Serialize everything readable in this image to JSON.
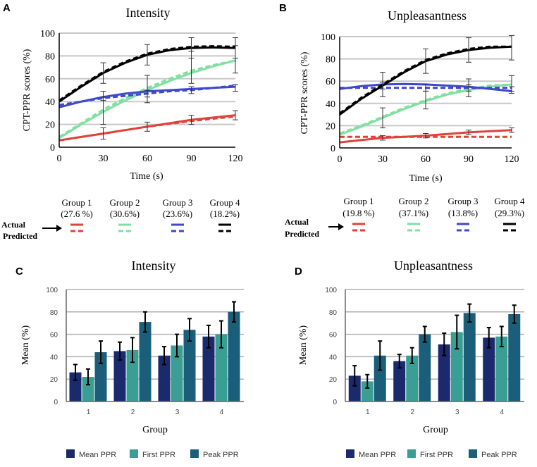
{
  "panels": {
    "a": "A",
    "b": "B",
    "c": "C",
    "d": "D"
  },
  "legend_top": {
    "actual_label": "Actual",
    "predicted_label": "Predicted",
    "left": [
      {
        "name": "Group 1",
        "pct": "(27.6 %)"
      },
      {
        "name": "Group 2",
        "pct": "(30.6%)"
      },
      {
        "name": "Group 3",
        "pct": "(23.6%)"
      },
      {
        "name": "Group 4",
        "pct": "(18.2%)"
      }
    ],
    "right": [
      {
        "name": "Group 1",
        "pct": "(19.8 %)"
      },
      {
        "name": "Group 2",
        "pct": "(37.1%)"
      },
      {
        "name": "Group 3",
        "pct": "(13.8%)"
      },
      {
        "name": "Group 4",
        "pct": "(29.3%)"
      }
    ]
  },
  "legend_bottom": [
    "Mean PPR",
    "First PPR",
    "Peak PPR"
  ],
  "colors": {
    "group1": "#e0413a",
    "group2": "#7fe0a0",
    "group3": "#3f48cc",
    "group4": "#000000",
    "mean": "#1a2a6c",
    "first": "#3a9e94",
    "peak": "#1a5e7a",
    "grid": "#c8c8c8"
  },
  "chart_data": [
    {
      "id": "A",
      "type": "line",
      "title": "Intensity",
      "xlabel": "Time (s)",
      "ylabel": "CPT-PPR scores (%)",
      "xlim": [
        0,
        120
      ],
      "ylim": [
        0,
        100
      ],
      "xticks": [
        0,
        30,
        60,
        90,
        120
      ],
      "yticks": [
        0,
        20,
        40,
        60,
        80,
        100
      ],
      "x": [
        0,
        15,
        30,
        45,
        60,
        75,
        90,
        105,
        120
      ],
      "series": [
        {
          "name": "Group 1",
          "color_key": "group1",
          "actual": [
            6,
            9,
            12,
            15,
            18,
            21,
            24,
            26,
            28
          ],
          "predicted": [
            6,
            9,
            12,
            15,
            18,
            20.5,
            23,
            25,
            27
          ],
          "err_x": [
            30,
            60,
            90,
            120
          ],
          "err_mean": [
            12,
            18,
            24,
            28
          ],
          "err_sd": [
            5,
            4,
            4,
            4
          ]
        },
        {
          "name": "Group 2",
          "color_key": "group2",
          "actual": [
            8,
            20,
            31,
            41,
            50,
            58,
            65,
            71,
            76
          ],
          "predicted": [
            9,
            21,
            33,
            43,
            52,
            60,
            67,
            72,
            76
          ],
          "err_x": [
            30,
            60,
            90,
            120
          ],
          "err_mean": [
            32,
            51,
            70,
            77
          ],
          "err_sd": [
            12,
            12,
            14,
            12
          ]
        },
        {
          "name": "Group 3",
          "color_key": "group3",
          "actual": [
            35,
            40,
            44,
            47,
            49,
            50,
            51,
            52,
            53
          ],
          "predicted": [
            37,
            40,
            43,
            45,
            47,
            49,
            50,
            52,
            54
          ],
          "err_x": [
            30,
            60,
            90,
            120
          ],
          "err_mean": [
            45,
            47,
            50,
            52
          ],
          "err_sd": [
            4,
            3,
            3,
            3
          ]
        },
        {
          "name": "Group 4",
          "color_key": "group4",
          "actual": [
            40,
            53,
            65,
            74,
            81,
            85,
            87,
            87.5,
            87
          ],
          "predicted": [
            41,
            54,
            66,
            75,
            82,
            86,
            88,
            88.5,
            88
          ],
          "err_x": [
            30,
            60,
            90,
            120
          ],
          "err_mean": [
            65,
            81,
            87,
            87
          ],
          "err_sd": [
            9,
            9,
            9,
            9
          ]
        }
      ]
    },
    {
      "id": "B",
      "type": "line",
      "title": "Unpleasantness",
      "xlabel": "Time (s)",
      "ylabel": "CPT-PPR scores (%)",
      "xlim": [
        0,
        120
      ],
      "ylim": [
        0,
        100
      ],
      "xticks": [
        0,
        30,
        60,
        90,
        120
      ],
      "yticks": [
        0,
        20,
        40,
        60,
        80,
        100
      ],
      "x": [
        0,
        15,
        30,
        45,
        60,
        75,
        90,
        105,
        120
      ],
      "series": [
        {
          "name": "Group 1",
          "color_key": "group1",
          "actual": [
            5,
            7,
            9,
            10,
            11,
            12.5,
            14,
            15,
            16
          ],
          "predicted": [
            10,
            10,
            10,
            10,
            10,
            10,
            10,
            10,
            10
          ],
          "err_x": [
            30,
            60,
            90,
            120
          ],
          "err_mean": [
            9,
            11,
            14,
            16
          ],
          "err_sd": [
            2,
            2,
            2,
            2
          ]
        },
        {
          "name": "Group 2",
          "color_key": "group2",
          "actual": [
            12,
            19,
            27,
            35,
            42,
            48,
            52,
            55,
            57
          ],
          "predicted": [
            13,
            20,
            28,
            36,
            43,
            49,
            53,
            56,
            57
          ],
          "err_x": [
            30,
            60,
            90,
            120
          ],
          "err_mean": [
            27,
            43,
            54,
            58
          ],
          "err_sd": [
            9,
            8,
            8,
            7
          ]
        },
        {
          "name": "Group 3",
          "color_key": "group3",
          "actual": [
            53,
            55.5,
            57,
            57.5,
            57,
            56,
            55,
            53,
            51
          ],
          "predicted": [
            54,
            54,
            54,
            54,
            54,
            54,
            54,
            54,
            54
          ],
          "err_x": [
            30,
            60,
            90,
            120
          ],
          "err_mean": [
            56,
            54,
            54,
            52
          ],
          "err_sd": [
            3,
            3,
            3,
            3
          ]
        },
        {
          "name": "Group 4",
          "color_key": "group4",
          "actual": [
            30,
            44,
            56,
            68,
            78,
            84,
            88,
            90,
            91
          ],
          "predicted": [
            31,
            45,
            57,
            69,
            79,
            85,
            89,
            91,
            91
          ],
          "err_x": [
            30,
            60,
            90,
            120
          ],
          "err_mean": [
            57,
            78,
            88,
            90
          ],
          "err_sd": [
            11,
            11,
            11,
            11
          ]
        }
      ]
    },
    {
      "id": "C",
      "type": "bar",
      "title": "Intensity",
      "xlabel": "Group",
      "ylabel": "Mean (%)",
      "ylim": [
        0,
        100
      ],
      "yticks": [
        0,
        20,
        40,
        60,
        80,
        100
      ],
      "categories": [
        "1",
        "2",
        "3",
        "4"
      ],
      "series": [
        {
          "name": "Mean PPR",
          "color_key": "mean",
          "values": [
            26,
            45,
            41,
            58
          ],
          "errors": [
            7,
            8,
            8,
            10
          ]
        },
        {
          "name": "First PPR",
          "color_key": "first",
          "values": [
            22,
            46,
            50,
            60
          ],
          "errors": [
            7,
            11,
            10,
            12
          ]
        },
        {
          "name": "Peak PPR",
          "color_key": "peak",
          "values": [
            44,
            71,
            64,
            80
          ],
          "errors": [
            10,
            9,
            10,
            9
          ]
        }
      ]
    },
    {
      "id": "D",
      "type": "bar",
      "title": "Unpleasantness",
      "xlabel": "Group",
      "ylabel": "Mean (%)",
      "ylim": [
        0,
        100
      ],
      "yticks": [
        0,
        20,
        40,
        60,
        80,
        100
      ],
      "categories": [
        "1",
        "2",
        "3",
        "4"
      ],
      "series": [
        {
          "name": "Mean PPR",
          "color_key": "mean",
          "values": [
            23,
            36,
            51,
            57
          ],
          "errors": [
            9,
            6,
            10,
            9
          ]
        },
        {
          "name": "First PPR",
          "color_key": "first",
          "values": [
            18,
            41,
            62,
            58
          ],
          "errors": [
            6,
            7,
            15,
            9
          ]
        },
        {
          "name": "Peak PPR",
          "color_key": "peak",
          "values": [
            41,
            60,
            79,
            78
          ],
          "errors": [
            13,
            7,
            8,
            8
          ]
        }
      ]
    }
  ]
}
